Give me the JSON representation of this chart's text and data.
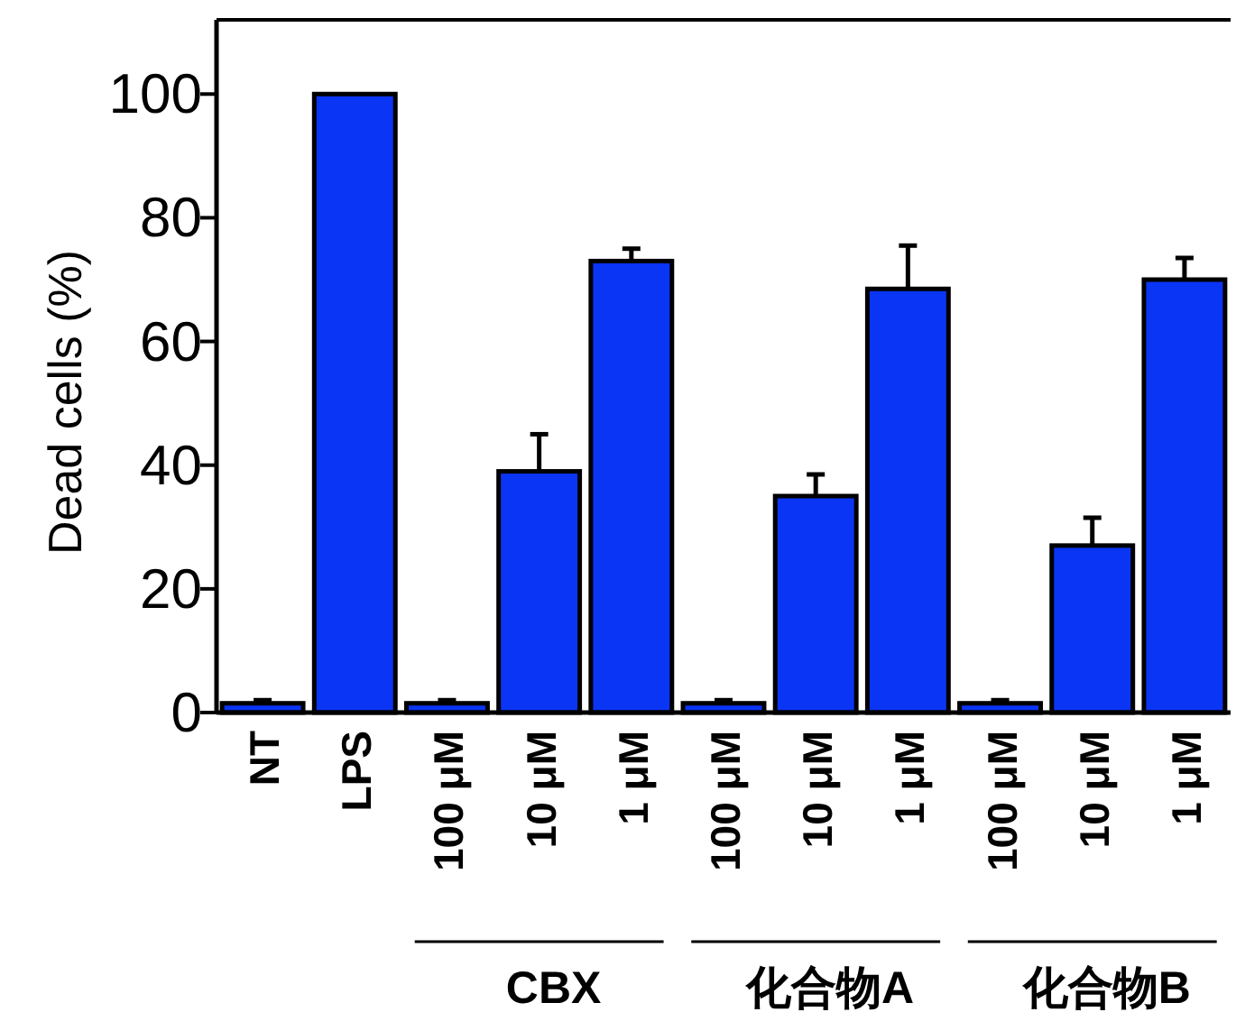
{
  "chart_data": {
    "type": "bar",
    "ylabel": "Dead cells (%)",
    "categories": [
      "NT",
      "LPS",
      "100 μM",
      "10 μM",
      "1 μM",
      "100 μM",
      "10 μM",
      "1 μM",
      "100 μM",
      "10 μM",
      "1 μM"
    ],
    "values": [
      1.5,
      100,
      1.5,
      39,
      73,
      1.5,
      35,
      68.5,
      1.5,
      27,
      70
    ],
    "errors": [
      [
        1.5,
        2
      ],
      null,
      [
        1.5,
        2
      ],
      [
        39,
        45
      ],
      [
        73,
        75
      ],
      [
        1.5,
        2
      ],
      [
        35,
        38.5
      ],
      [
        68.5,
        75.5
      ],
      [
        1.5,
        2
      ],
      [
        27,
        31.5
      ],
      [
        70,
        73.5
      ]
    ],
    "color": "#0a35f5",
    "ylim": [
      0,
      112
    ],
    "yticks": [
      0,
      20,
      40,
      60,
      80,
      100
    ],
    "grid": false,
    "annotations": [
      "CBX",
      "化合物A",
      "化合物B"
    ]
  }
}
